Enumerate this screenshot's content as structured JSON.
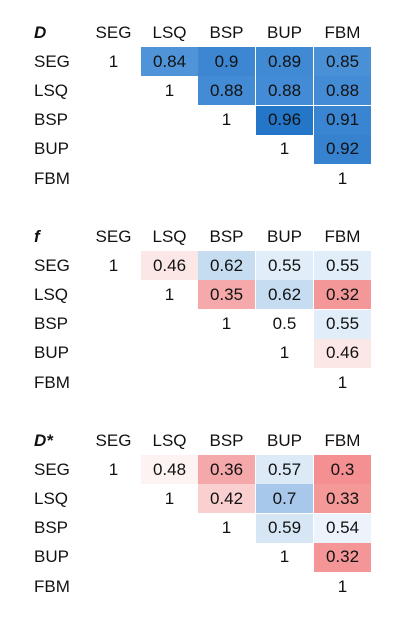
{
  "columns": [
    "SEG",
    "LSQ",
    "BSP",
    "BUP",
    "FBM"
  ],
  "rows": [
    "SEG",
    "LSQ",
    "BSP",
    "BUP",
    "FBM"
  ],
  "matrices": [
    {
      "title": "D",
      "values": [
        [
          "1",
          "0.84",
          "0.9",
          "0.89",
          "0.85"
        ],
        [
          "",
          "1",
          "0.88",
          "0.88",
          "0.88"
        ],
        [
          "",
          "",
          "1",
          "0.96",
          "0.91"
        ],
        [
          "",
          "",
          "",
          "1",
          "0.92"
        ],
        [
          "",
          "",
          "",
          "",
          "1"
        ]
      ],
      "colors": [
        [
          "",
          "#4f93d8",
          "#3c86d2",
          "#4089d3",
          "#4a90d7"
        ],
        [
          "",
          "",
          "#438bd4",
          "#438bd4",
          "#438bd4"
        ],
        [
          "",
          "",
          "",
          "#2476c8",
          "#3a85d1"
        ],
        [
          "",
          "",
          "",
          "",
          "#3682cf"
        ],
        [
          "",
          "",
          "",
          "",
          ""
        ]
      ]
    },
    {
      "title": "f",
      "values": [
        [
          "1",
          "0.46",
          "0.62",
          "0.55",
          "0.55"
        ],
        [
          "",
          "1",
          "0.35",
          "0.62",
          "0.32"
        ],
        [
          "",
          "",
          "1",
          "0.5",
          "0.55"
        ],
        [
          "",
          "",
          "",
          "1",
          "0.46"
        ],
        [
          "",
          "",
          "",
          "",
          "1"
        ]
      ],
      "colors": [
        [
          "",
          "#fce7e7",
          "#c5dcf1",
          "#e1edf8",
          "#e1edf8"
        ],
        [
          "",
          "",
          "#f6a9aa",
          "#c5dcf1",
          "#f49798"
        ],
        [
          "",
          "",
          "",
          "#ffffff",
          "#e1edf8"
        ],
        [
          "",
          "",
          "",
          "",
          "#fce7e7"
        ],
        [
          "",
          "",
          "",
          "",
          ""
        ]
      ]
    },
    {
      "title": "D*",
      "values": [
        [
          "1",
          "0.48",
          "0.36",
          "0.57",
          "0.3"
        ],
        [
          "",
          "1",
          "0.42",
          "0.7",
          "0.33"
        ],
        [
          "",
          "",
          "1",
          "0.59",
          "0.54"
        ],
        [
          "",
          "",
          "",
          "1",
          "0.32"
        ],
        [
          "",
          "",
          "",
          "",
          "1"
        ]
      ],
      "colors": [
        [
          "",
          "#fdf3f3",
          "#f5a8a9",
          "#dce9f6",
          "#f49091"
        ],
        [
          "",
          "",
          "#f9cfd0",
          "#a7c8ea",
          "#f49898"
        ],
        [
          "",
          "",
          "",
          "#d6e6f5",
          "#ecf3fa"
        ],
        [
          "",
          "",
          "",
          "",
          "#f49597"
        ],
        [
          "",
          "",
          "",
          "",
          ""
        ]
      ]
    }
  ]
}
